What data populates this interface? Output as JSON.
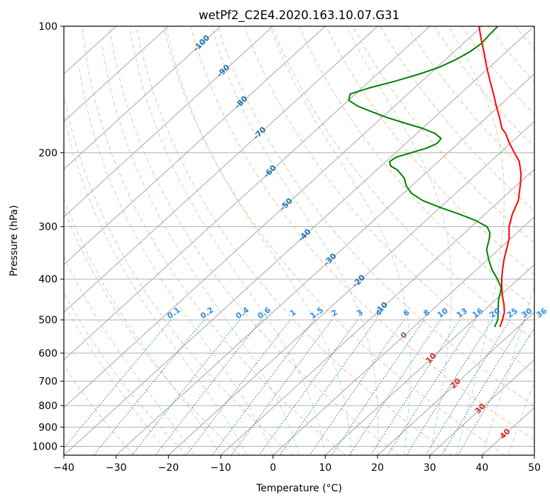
{
  "chart_data": {
    "type": "line",
    "subtype": "skew-t log-p diagram",
    "title": "wetPf2_C2E4.2020.163.10.07.G31",
    "xlabel": "Temperature (°C)",
    "ylabel": "Pressure (hPa)",
    "xlim": [
      -40,
      50
    ],
    "ylim": [
      1050,
      100
    ],
    "y_scale": "log",
    "x_ticks": [
      "−40",
      "−30",
      "−20",
      "−10",
      "0",
      "10",
      "20",
      "30",
      "40",
      "50"
    ],
    "y_ticks": [
      "100",
      "200",
      "300",
      "400",
      "500",
      "600",
      "700",
      "800",
      "900",
      "1000"
    ],
    "grid": true,
    "series": [
      {
        "color": "#ff0000",
        "pressure": [
          520,
          500,
          480,
          460,
          440,
          420,
          400,
          380,
          360,
          340,
          320,
          300,
          280,
          260,
          240,
          225,
          210,
          200,
          190,
          180,
          175,
          165,
          155,
          145,
          135,
          125,
          115,
          108,
          100
        ],
        "temperature": [
          16.5,
          15.5,
          14.3,
          12.6,
          10.6,
          8.7,
          6.8,
          5.0,
          3.2,
          1.5,
          -0.3,
          -2.8,
          -4.8,
          -6.5,
          -9.2,
          -11.5,
          -14.5,
          -17.3,
          -20.2,
          -23.0,
          -24.8,
          -27.5,
          -30.5,
          -33.6,
          -37.0,
          -40.6,
          -44.3,
          -47.2,
          -50.6
        ]
      },
      {
        "color": "#008000",
        "pressure": [
          520,
          500,
          480,
          450,
          420,
          400,
          380,
          360,
          340,
          320,
          310,
          300,
          290,
          280,
          270,
          260,
          250,
          240,
          230,
          220,
          215,
          210,
          205,
          200,
          195,
          190,
          185,
          180,
          175,
          170,
          165,
          160,
          155,
          150,
          145,
          140,
          135,
          130,
          125,
          120,
          115,
          110,
          105,
          100
        ],
        "temperature": [
          15.5,
          14.6,
          13.1,
          10.7,
          8.6,
          6.0,
          3.0,
          0.3,
          -2.3,
          -4.1,
          -5.2,
          -7.0,
          -10.5,
          -15.0,
          -20.0,
          -24.8,
          -28.4,
          -31.0,
          -33.0,
          -36.0,
          -38.2,
          -39.3,
          -39.0,
          -37.0,
          -35.0,
          -34.0,
          -34.3,
          -36.5,
          -40.0,
          -44.5,
          -49.0,
          -53.0,
          -57.0,
          -60.0,
          -61.0,
          -58.5,
          -55.0,
          -52.0,
          -49.5,
          -48.0,
          -47.0,
          -46.5,
          -46.8,
          -47.0
        ]
      }
    ],
    "reference_lines": {
      "isotherms": "every 10 °C, skewed 45°",
      "dry_adiabats": "every 10 °C",
      "moist_adiabats": "every 5 °C",
      "mixing_ratio_lines": [
        0.1,
        0.2,
        0.4,
        0.6,
        1,
        1.5,
        2,
        3,
        4,
        6,
        8,
        10,
        13,
        16,
        20,
        25,
        30,
        36
      ]
    },
    "annotations": {
      "isotherm_labels_blue": [
        "-100",
        "-90",
        "-80",
        "-70",
        "-60",
        "-50",
        "-40",
        "-30",
        "-20",
        "-10"
      ],
      "isotherm_labels_gray": [
        "0"
      ],
      "isotherm_labels_red": [
        "10",
        "20",
        "30",
        "40"
      ],
      "mixing_ratio_labels": [
        "0.1",
        "0.2",
        "0.4",
        "0.6",
        "1",
        "1.5",
        "2",
        "3",
        "4",
        "6",
        "8",
        "10",
        "13",
        "16",
        "20",
        "25",
        "30",
        "36"
      ]
    }
  }
}
